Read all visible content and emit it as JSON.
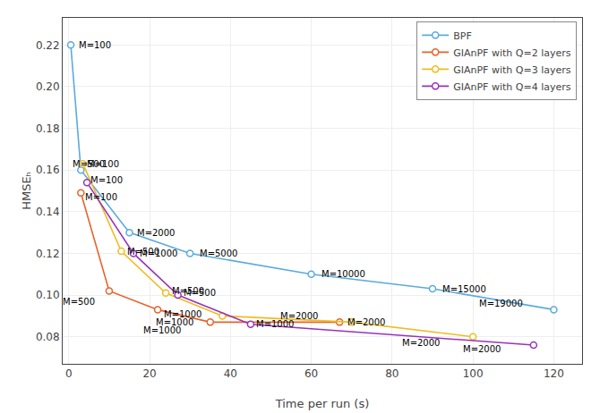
{
  "chart_data": {
    "type": "line",
    "xlabel": "Time per run (s)",
    "ylabel": "HMSEₕ",
    "marker": "circle",
    "line_style": "solid",
    "grid": true,
    "legend": "upper right",
    "xlim": [
      -1.5,
      127
    ],
    "ylim": [
      0.067,
      0.233
    ],
    "xticks": [
      0,
      20,
      40,
      60,
      80,
      100,
      120
    ],
    "yticks": [
      0.08,
      {
        "value": 0.1,
        "label": "0.10"
      },
      0.12,
      0.14,
      0.16,
      0.18,
      {
        "value": 0.2,
        "label": "0.20"
      },
      0.22
    ],
    "series": [
      {
        "name": "BPF",
        "color": "#5AABDD",
        "x": [
          0.5,
          3.0,
          15.0,
          30.0,
          60.0,
          90.0,
          120.0
        ],
        "values": [
          0.22,
          0.16,
          0.13,
          0.12,
          0.11,
          0.103,
          0.093
        ]
      },
      {
        "name": "GIAnPF with Q=2 layers",
        "color": "#E8622A",
        "x": [
          3.0,
          10.0,
          22.0,
          35.0,
          67.0
        ],
        "values": [
          0.149,
          0.102,
          0.093,
          0.087,
          0.087
        ]
      },
      {
        "name": "GIAnPF with Q=3 layers",
        "color": "#F0BC20",
        "x": [
          3.5,
          13.0,
          24.0,
          38.0,
          70.0,
          100.0
        ],
        "values": [
          0.163,
          0.121,
          0.101,
          0.09,
          0.087,
          0.08
        ]
      },
      {
        "name": "GIAnPF with Q=4 layers",
        "color": "#9933BB",
        "x": [
          4.5,
          16.0,
          27.0,
          45.0,
          115.0
        ],
        "values": [
          0.154,
          0.12,
          0.1,
          0.086,
          0.076
        ]
      }
    ],
    "annotations": [
      {
        "text": "M=100",
        "x": 2.0,
        "y": 0.22
      },
      {
        "text": "M=500",
        "x": 0.5,
        "y": 0.163
      },
      {
        "text": "M=2000",
        "x": 16.5,
        "y": 0.13
      },
      {
        "text": "M=5000",
        "x": 32.0,
        "y": 0.12
      },
      {
        "text": "M=10000",
        "x": 62.0,
        "y": 0.11
      },
      {
        "text": "M=15000",
        "x": 92.0,
        "y": 0.103
      },
      {
        "text": "M=19000",
        "x": 101.0,
        "y": 0.096
      },
      {
        "text": "M=100",
        "x": 3.5,
        "y": 0.147
      },
      {
        "text": "M=500",
        "x": -2.0,
        "y": 0.097
      },
      {
        "text": "M=1000",
        "x": 23.0,
        "y": 0.091
      },
      {
        "text": "M=1000",
        "x": 18.0,
        "y": 0.083
      },
      {
        "text": "M=2000",
        "x": 68.5,
        "y": 0.087
      },
      {
        "text": "M=100",
        "x": 4.0,
        "y": 0.163
      },
      {
        "text": "M=500",
        "x": 14.0,
        "y": 0.121
      },
      {
        "text": "M=500",
        "x": 25.0,
        "y": 0.102
      },
      {
        "text": "M=1000",
        "x": 21.0,
        "y": 0.087
      },
      {
        "text": "M=2000",
        "x": 52.0,
        "y": 0.09
      },
      {
        "text": "M=2000",
        "x": 82.0,
        "y": 0.077
      },
      {
        "text": "M=100",
        "x": 5.0,
        "y": 0.155
      },
      {
        "text": "M=1000",
        "x": 17.0,
        "y": 0.12
      },
      {
        "text": "M=500",
        "x": 28.0,
        "y": 0.101
      },
      {
        "text": "M=1000",
        "x": 46.0,
        "y": 0.086
      },
      {
        "text": "M=2000",
        "x": 97.0,
        "y": 0.074
      }
    ]
  }
}
